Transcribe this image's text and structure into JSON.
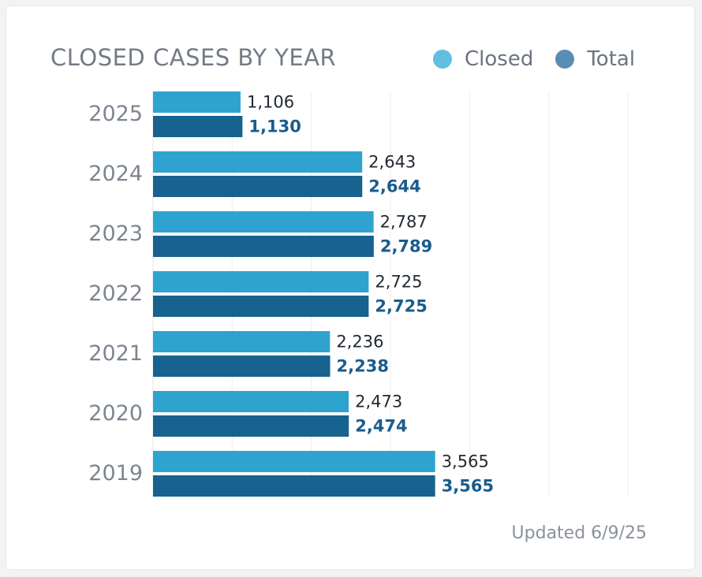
{
  "header": {
    "title": "CLOSED CASES BY YEAR"
  },
  "legend": [
    {
      "label": "Closed",
      "color": "#63bfdf"
    },
    {
      "label": "Total",
      "color": "#5a8db4"
    }
  ],
  "footer": {
    "updated": "Updated 6/9/25"
  },
  "chart_data": {
    "type": "bar",
    "orientation": "horizontal",
    "title": "CLOSED CASES BY YEAR",
    "categories": [
      "2025",
      "2024",
      "2023",
      "2022",
      "2021",
      "2020",
      "2019"
    ],
    "series": [
      {
        "name": "Closed",
        "color": "#2ea3d0",
        "values": [
          1106,
          2643,
          2787,
          2725,
          2236,
          2473,
          3565
        ],
        "labels": [
          "1,106",
          "2,643",
          "2,787",
          "2,725",
          "2,236",
          "2,473",
          "3,565"
        ]
      },
      {
        "name": "Total",
        "color": "#17628f",
        "values": [
          1130,
          2644,
          2789,
          2725,
          2238,
          2474,
          3565
        ],
        "labels": [
          "1,130",
          "2,644",
          "2,789",
          "2,725",
          "2,238",
          "2,474",
          "3,565"
        ]
      }
    ],
    "xlim": [
      0,
      6000
    ],
    "grid": true,
    "legend_position": "top-right"
  }
}
